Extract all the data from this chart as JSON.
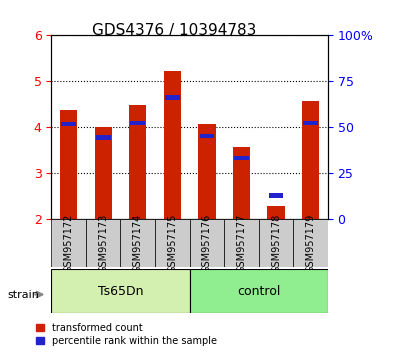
{
  "title": "GDS4376 / 10394783",
  "samples": [
    "GSM957172",
    "GSM957173",
    "GSM957174",
    "GSM957175",
    "GSM957176",
    "GSM957177",
    "GSM957178",
    "GSM957179"
  ],
  "red_values": [
    4.38,
    4.01,
    4.48,
    5.22,
    4.07,
    3.58,
    2.3,
    4.58
  ],
  "blue_values": [
    4.08,
    3.78,
    4.1,
    4.65,
    3.82,
    3.33,
    2.52,
    4.1
  ],
  "ylim": [
    2.0,
    6.0
  ],
  "yticks_left": [
    2,
    3,
    4,
    5,
    6
  ],
  "yticks_right": [
    0,
    25,
    50,
    75,
    100
  ],
  "bar_base": 2.0,
  "group1_label": "Ts65Dn",
  "group2_label": "control",
  "strain_label": "strain",
  "legend_red": "transformed count",
  "legend_blue": "percentile rank within the sample",
  "red_color": "#cc2200",
  "blue_color": "#2222cc",
  "bar_width": 0.5,
  "group1_bg": "#d4f0b0",
  "group2_bg": "#90ee90",
  "tick_bg": "#cccccc",
  "title_fontsize": 11,
  "axis_fontsize": 8
}
